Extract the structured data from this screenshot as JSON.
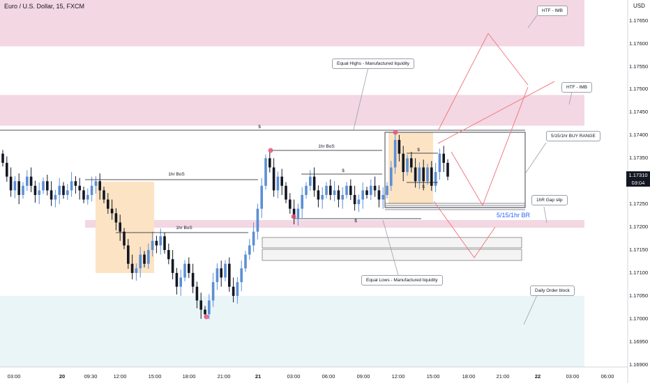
{
  "header": {
    "title": "Euro / U.S. Dollar, 15, FXCM",
    "currency": "USD"
  },
  "price_tag": {
    "price": "1.17310",
    "countdown": "09:04"
  },
  "annotations": {
    "htf_imb_top": "HTF - IMB",
    "htf_imb_mid": "HTF - IMB",
    "equal_highs": "Equal Highs - Manufactured liquidity",
    "equal_lows": "Equal Lows - Manufactured liquidity",
    "buy_range": "5/15/1hr BUY RANGE",
    "gap_slip": "1hR Gap slip",
    "daily_ob": "Daily Order block",
    "br_label": "5/15/1hr BR",
    "bos_1": "1hr BoS",
    "bos_2": "1hr BoS",
    "bos_3": "1hr BoS",
    "liq_top": "$",
    "liq_mid": "$",
    "liq_low": "$",
    "liq_r1": "$",
    "liq_r2": "$"
  },
  "colors": {
    "up": "#5b8fd6",
    "down": "#131722",
    "imbalance_zone": "#f3d7e3",
    "order_block_zone": "#eaf5f8",
    "demand_box": "#fbe3c4",
    "projection": "#f07b85"
  },
  "chart_data": {
    "type": "candlestick",
    "symbol": "Euro / U.S. Dollar",
    "timeframe": "15",
    "source": "FXCM",
    "ylim": [
      1.169,
      1.177
    ],
    "yticks": [
      "1.17650",
      "1.17600",
      "1.17550",
      "1.17500",
      "1.17450",
      "1.17400",
      "1.17350",
      "1.17300",
      "1.17250",
      "1.17200",
      "1.17150",
      "1.17100",
      "1.17050",
      "1.17000",
      "1.16950",
      "1.16900"
    ],
    "xticks": [
      {
        "label": "03:00",
        "bold": false
      },
      {
        "label": "20",
        "bold": true
      },
      {
        "label": "09:30",
        "bold": false
      },
      {
        "label": "12:00",
        "bold": false
      },
      {
        "label": "15:00",
        "bold": false
      },
      {
        "label": "18:00",
        "bold": false
      },
      {
        "label": "21:00",
        "bold": false
      },
      {
        "label": "21",
        "bold": true
      },
      {
        "label": "03:00",
        "bold": false
      },
      {
        "label": "06:00",
        "bold": false
      },
      {
        "label": "09:00",
        "bold": false
      },
      {
        "label": "12:00",
        "bold": false
      },
      {
        "label": "15:00",
        "bold": false
      },
      {
        "label": "18:00",
        "bold": false
      },
      {
        "label": "21:00",
        "bold": false
      },
      {
        "label": "22",
        "bold": true
      },
      {
        "label": "03:00",
        "bold": false
      },
      {
        "label": "06:00",
        "bold": false
      }
    ],
    "last_price": 1.1731,
    "key_levels": {
      "htf_imb_top": [
        1.17594,
        1.177
      ],
      "htf_imb_mid": [
        1.17421,
        1.17488
      ],
      "gap_slip": [
        1.17204,
        1.17215
      ],
      "daily_order_block": [
        1.169,
        1.1705
      ],
      "equal_highs_liquidity": 1.17412,
      "equal_lows_liquidity": 1.17225
    },
    "close_path": [
      1.1734,
      1.1731,
      1.1728,
      1.173,
      1.1727,
      1.1729,
      1.1731,
      1.1729,
      1.1727,
      1.1728,
      1.173,
      1.1728,
      1.1726,
      1.1727,
      1.1729,
      1.1727,
      1.1728,
      1.173,
      1.1729,
      1.1728,
      1.1726,
      1.1727,
      1.1729,
      1.173,
      1.1728,
      1.1726,
      1.1724,
      1.1723,
      1.1721,
      1.1719,
      1.1716,
      1.1712,
      1.171,
      1.1711,
      1.1714,
      1.1712,
      1.1715,
      1.1717,
      1.1716,
      1.1718,
      1.1715,
      1.1713,
      1.171,
      1.1707,
      1.1709,
      1.1712,
      1.171,
      1.1707,
      1.1704,
      1.1702,
      1.1701,
      1.1704,
      1.1708,
      1.1711,
      1.1709,
      1.1712,
      1.1707,
      1.1705,
      1.1708,
      1.1711,
      1.1714,
      1.1716,
      1.1719,
      1.1724,
      1.1729,
      1.1735,
      1.1733,
      1.1728,
      1.1731,
      1.1729,
      1.1726,
      1.1724,
      1.1722,
      1.1724,
      1.1727,
      1.1729,
      1.1731,
      1.1728,
      1.1726,
      1.1727,
      1.1729,
      1.1727,
      1.1728,
      1.1726,
      1.1727,
      1.1729,
      1.1727,
      1.1725,
      1.1726,
      1.1728,
      1.1727,
      1.1729,
      1.1728,
      1.1726,
      1.1727,
      1.1729,
      1.1733,
      1.1739,
      1.1736,
      1.1732,
      1.1735,
      1.1733,
      1.173,
      1.1733,
      1.173,
      1.1733,
      1.1729,
      1.1732,
      1.1736,
      1.1734,
      1.1731
    ]
  }
}
